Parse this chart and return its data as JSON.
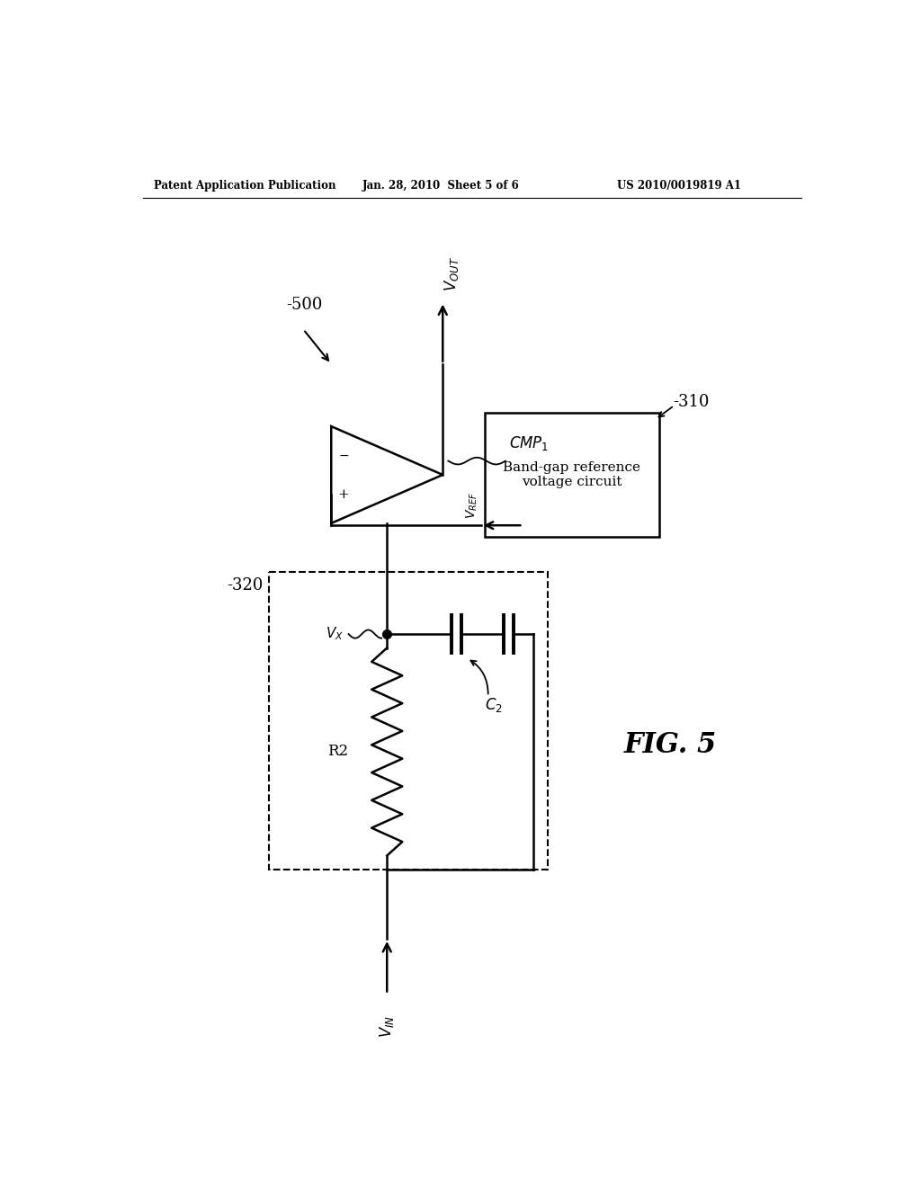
{
  "bg_color": "#ffffff",
  "line_color": "#000000",
  "header_left": "Patent Application Publication",
  "header_mid": "Jan. 28, 2010  Sheet 5 of 6",
  "header_right": "US 2010/0019819 A1",
  "fig_label": "FIG. 5",
  "label_500": "-500",
  "label_320": "-320",
  "label_310": "-310",
  "label_R2": "R2",
  "box_310_text": "Band-gap reference\nvoltage circuit"
}
